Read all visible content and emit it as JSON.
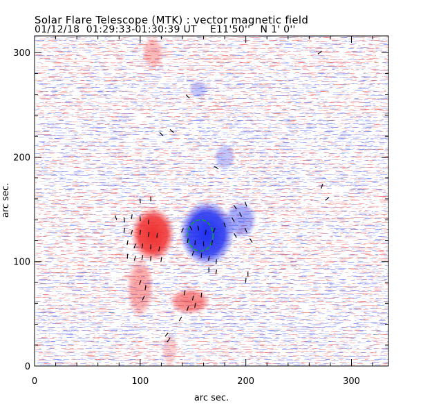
{
  "chart_data": {
    "type": "heatmap",
    "title": "Solar Flare Telescope (MTK) : vector magnetic field",
    "subtitle": {
      "date": "01/12/18",
      "time_range": "01:29:33-01:30:39 UT",
      "position": "E11'50''   N 1' 0''"
    },
    "xlabel": "arc sec.",
    "ylabel": "arc sec.",
    "xlim": [
      0,
      335
    ],
    "ylim": [
      0,
      316
    ],
    "xticks": [
      "0",
      "100",
      "200",
      "300"
    ],
    "yticks": [
      "0",
      "100",
      "200",
      "300"
    ],
    "colors": {
      "positive": "#f03030",
      "negative": "#2030f0",
      "contour": "#00c000",
      "vector": "#000000"
    },
    "polarity_regions": [
      {
        "polarity": "positive",
        "x": 112,
        "y": 126,
        "rx": 16,
        "ry": 20,
        "strength": 1.0
      },
      {
        "polarity": "positive",
        "x": 100,
        "y": 75,
        "rx": 10,
        "ry": 22,
        "strength": 0.45
      },
      {
        "polarity": "positive",
        "x": 147,
        "y": 62,
        "rx": 15,
        "ry": 10,
        "strength": 0.6
      },
      {
        "polarity": "positive",
        "x": 112,
        "y": 300,
        "rx": 8,
        "ry": 12,
        "strength": 0.35
      },
      {
        "polarity": "positive",
        "x": 128,
        "y": 15,
        "rx": 6,
        "ry": 12,
        "strength": 0.25
      },
      {
        "polarity": "negative",
        "x": 163,
        "y": 127,
        "rx": 20,
        "ry": 24,
        "strength": 1.0
      },
      {
        "polarity": "negative",
        "x": 195,
        "y": 140,
        "rx": 12,
        "ry": 14,
        "strength": 0.45
      },
      {
        "polarity": "negative",
        "x": 155,
        "y": 265,
        "rx": 7,
        "ry": 7,
        "strength": 0.3
      },
      {
        "polarity": "negative",
        "x": 180,
        "y": 200,
        "rx": 8,
        "ry": 10,
        "strength": 0.3
      }
    ],
    "contour": {
      "x": 157,
      "y": 125,
      "rx": 12,
      "ry": 15
    },
    "vectors": [
      [
        77,
        142,
        70
      ],
      [
        85,
        140,
        80
      ],
      [
        92,
        143,
        100
      ],
      [
        100,
        141,
        85
      ],
      [
        108,
        138,
        95
      ],
      [
        85,
        130,
        100
      ],
      [
        92,
        128,
        105
      ],
      [
        100,
        128,
        95
      ],
      [
        108,
        126,
        100
      ],
      [
        116,
        125,
        95
      ],
      [
        88,
        118,
        100
      ],
      [
        95,
        115,
        110
      ],
      [
        102,
        115,
        100
      ],
      [
        110,
        114,
        95
      ],
      [
        118,
        112,
        100
      ],
      [
        88,
        105,
        95
      ],
      [
        95,
        103,
        105
      ],
      [
        102,
        104,
        100
      ],
      [
        110,
        103,
        95
      ],
      [
        120,
        102,
        100
      ],
      [
        100,
        80,
        110
      ],
      [
        105,
        75,
        100
      ],
      [
        103,
        65,
        115
      ],
      [
        140,
        130,
        115
      ],
      [
        148,
        132,
        60
      ],
      [
        155,
        132,
        80
      ],
      [
        162,
        128,
        100
      ],
      [
        170,
        130,
        110
      ],
      [
        145,
        120,
        100
      ],
      [
        152,
        118,
        95
      ],
      [
        160,
        117,
        90
      ],
      [
        168,
        118,
        100
      ],
      [
        150,
        108,
        110
      ],
      [
        158,
        106,
        95
      ],
      [
        165,
        103,
        100
      ],
      [
        172,
        100,
        95
      ],
      [
        165,
        92,
        90
      ],
      [
        172,
        90,
        100
      ],
      [
        180,
        135,
        70
      ],
      [
        188,
        140,
        60
      ],
      [
        195,
        145,
        65
      ],
      [
        200,
        155,
        70
      ],
      [
        190,
        125,
        60
      ],
      [
        200,
        130,
        65
      ],
      [
        205,
        120,
        60
      ],
      [
        190,
        152,
        55
      ],
      [
        202,
        88,
        90
      ],
      [
        200,
        82,
        95
      ],
      [
        142,
        70,
        100
      ],
      [
        150,
        65,
        105
      ],
      [
        158,
        68,
        95
      ],
      [
        145,
        55,
        110
      ],
      [
        152,
        58,
        100
      ],
      [
        138,
        45,
        120
      ],
      [
        125,
        30,
        130
      ],
      [
        127,
        25,
        125
      ],
      [
        120,
        222,
        45
      ],
      [
        130,
        225,
        40
      ],
      [
        145,
        258,
        45
      ],
      [
        172,
        190,
        30
      ],
      [
        272,
        172,
        110
      ],
      [
        277,
        160,
        140
      ],
      [
        270,
        300,
        140
      ],
      [
        110,
        160,
        90
      ],
      [
        100,
        158,
        85
      ]
    ]
  }
}
